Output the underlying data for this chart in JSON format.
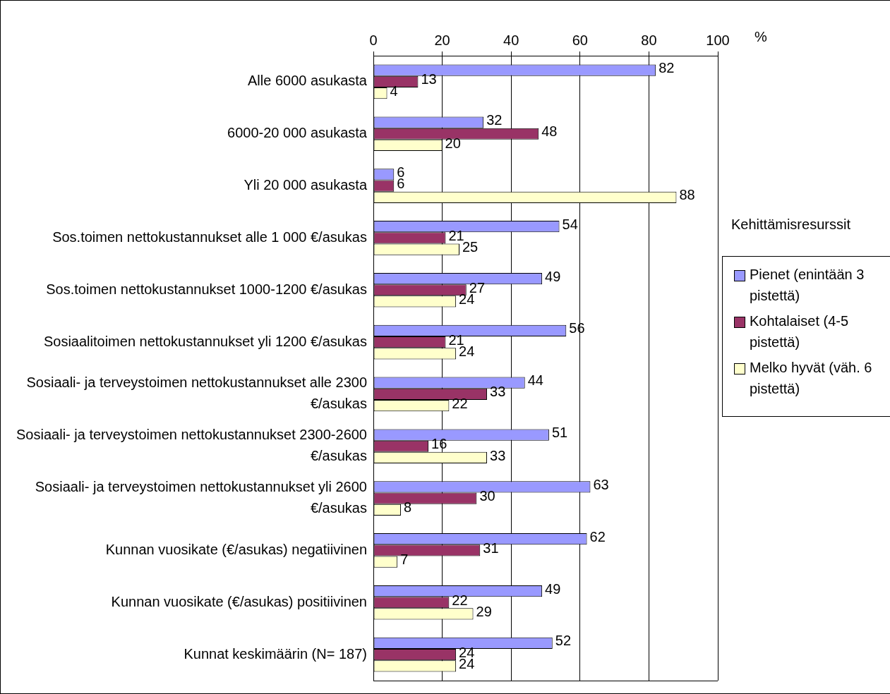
{
  "chart_data": {
    "type": "bar",
    "orientation": "horizontal",
    "xlabel": "%",
    "legend_title": "Kehittämisresurssit",
    "legend": "right",
    "grid": "x",
    "data_labels": true,
    "xlim": [
      0,
      100
    ],
    "xticks": [
      0,
      20,
      40,
      60,
      80,
      100
    ],
    "categories": [
      "Alle 6000 asukasta",
      "6000-20 000 asukasta",
      "Yli 20 000 asukasta",
      "Sos.toimen nettokustannukset alle 1 000 €/asukas",
      "Sos.toimen nettokustannukset 1000-1200 €/asukas",
      "Sosiaalitoimen nettokustannukset yli 1200 €/asukas",
      "Sosiaali- ja terveystoimen nettokustannukset alle 2300 €/asukas",
      "Sosiaali- ja terveystoimen nettokustannukset 2300-2600 €/asukas",
      "Sosiaali- ja terveystoimen nettokustannukset yli 2600 €/asukas",
      "Kunnan vuosikate (€/asukas) negatiivinen",
      "Kunnan vuosikate (€/asukas) positiivinen",
      "Kunnat keskimäärin (N= 187)"
    ],
    "series": [
      {
        "name": "Pienet (enintään 3 pistettä)",
        "color": "#9999ff",
        "values": [
          82,
          32,
          6,
          54,
          49,
          56,
          44,
          51,
          63,
          62,
          49,
          52
        ]
      },
      {
        "name": "Kohtalaiset (4-5 pistettä)",
        "color": "#993366",
        "values": [
          13,
          48,
          6,
          21,
          27,
          21,
          33,
          16,
          30,
          31,
          22,
          24
        ]
      },
      {
        "name": "Melko hyvät (väh. 6 pistettä)",
        "color": "#ffffcc",
        "values": [
          4,
          20,
          88,
          25,
          24,
          24,
          22,
          33,
          8,
          7,
          29,
          24
        ]
      }
    ]
  }
}
